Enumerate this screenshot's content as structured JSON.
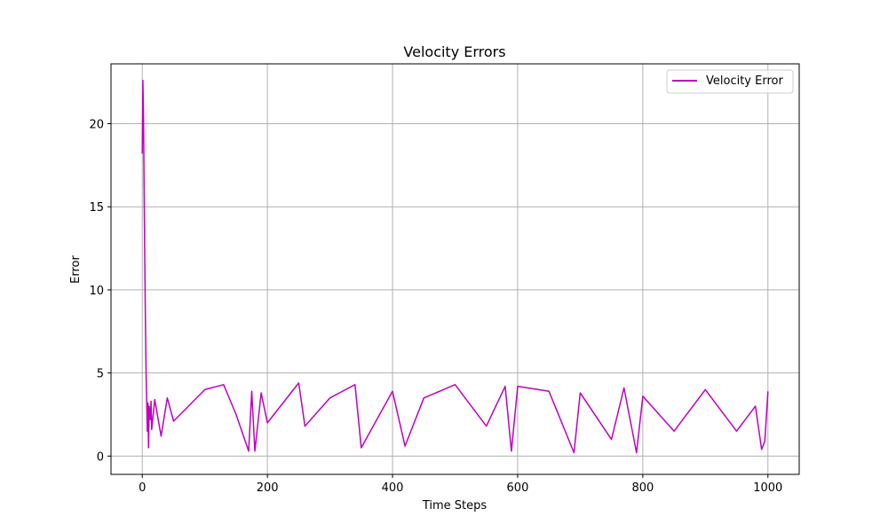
{
  "chart_data": {
    "type": "line",
    "title": "Velocity Errors",
    "xlabel": "Time Steps",
    "ylabel": "Error",
    "xlim": [
      -50,
      1050
    ],
    "ylim": [
      -1.1,
      23.6
    ],
    "xticks": [
      0,
      200,
      400,
      600,
      800,
      1000
    ],
    "yticks": [
      0,
      5,
      10,
      15,
      20
    ],
    "grid": true,
    "legend_position": "top-right",
    "series": [
      {
        "name": "Velocity Error",
        "color": "#bf00bf",
        "x": [
          0,
          1,
          2,
          3,
          4,
          5,
          6,
          7,
          8,
          9,
          10,
          11,
          12,
          13,
          14,
          15,
          20,
          30,
          40,
          50,
          100,
          130,
          150,
          170,
          175,
          180,
          190,
          200,
          250,
          260,
          300,
          340,
          350,
          400,
          420,
          450,
          500,
          550,
          580,
          590,
          600,
          650,
          690,
          700,
          750,
          770,
          790,
          800,
          850,
          900,
          950,
          980,
          990,
          995,
          1000
        ],
        "y": [
          18.2,
          22.6,
          20.5,
          16.0,
          12.0,
          8.0,
          5.0,
          3.3,
          1.5,
          3.2,
          0.5,
          3.0,
          2.5,
          2.2,
          3.3,
          1.6,
          3.4,
          1.2,
          3.5,
          2.1,
          4.0,
          4.3,
          2.5,
          0.3,
          3.9,
          0.3,
          3.8,
          2.0,
          4.4,
          1.8,
          3.5,
          4.3,
          0.5,
          3.9,
          0.6,
          3.5,
          4.3,
          1.8,
          4.2,
          0.3,
          4.2,
          3.9,
          0.2,
          3.8,
          1.0,
          4.1,
          0.2,
          3.6,
          1.5,
          4.0,
          1.5,
          3.0,
          0.4,
          0.9,
          3.9
        ]
      }
    ]
  }
}
